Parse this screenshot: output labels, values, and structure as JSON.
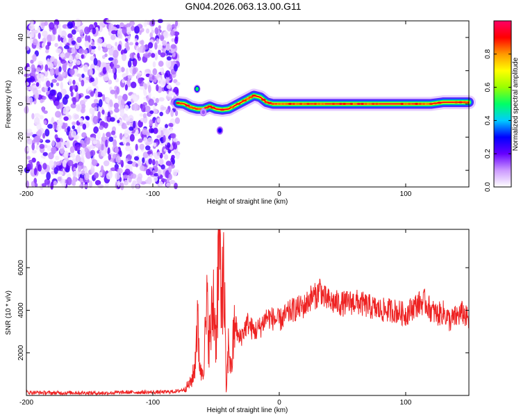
{
  "chart_data": [
    {
      "type": "heatmap",
      "title": "GN04.2026.063.13.00.G11",
      "xlabel": "Height of straight line (km)",
      "ylabel": "Frequency (Hz)",
      "xlim": [
        -200,
        150
      ],
      "ylim": [
        -50,
        50
      ],
      "xticks": [
        -200,
        -100,
        0,
        100
      ],
      "yticks": [
        -40,
        -20,
        0,
        20,
        40
      ],
      "colorbar": {
        "label": "Normalized spectral amplitude",
        "range": [
          0,
          1
        ],
        "ticks": [
          0.0,
          0.2,
          0.4,
          0.6,
          0.8
        ],
        "tick_labels": [
          "0.0",
          "0.2",
          "0.4",
          "0.6",
          "0.8"
        ],
        "colormap": [
          "#ffffff",
          "#cc99ff",
          "#6600ff",
          "#0000ff",
          "#00ccff",
          "#00ff66",
          "#99ff00",
          "#ffff00",
          "#ff9900",
          "#ff0000",
          "#ff0066"
        ]
      },
      "noise_region": {
        "x_range": [
          -200,
          -80
        ],
        "amplitude_range": [
          0.02,
          0.25
        ]
      },
      "signal_trace": [
        [
          -80,
          0.5
        ],
        [
          -75,
          0.0
        ],
        [
          -70,
          -2.0
        ],
        [
          -65,
          -3.0
        ],
        [
          -60,
          -3.0
        ],
        [
          -55,
          -1.5
        ],
        [
          -50,
          -3.0
        ],
        [
          -45,
          -3.5
        ],
        [
          -40,
          -3.0
        ],
        [
          -35,
          -1.0
        ],
        [
          -30,
          1.0
        ],
        [
          -25,
          3.0
        ],
        [
          -20,
          5.0
        ],
        [
          -15,
          4.0
        ],
        [
          -10,
          1.0
        ],
        [
          -5,
          0.0
        ],
        [
          0,
          0.0
        ],
        [
          20,
          0.0
        ],
        [
          40,
          0.0
        ],
        [
          60,
          0.0
        ],
        [
          80,
          0.0
        ],
        [
          100,
          0.0
        ],
        [
          120,
          0.0
        ],
        [
          130,
          1.0
        ],
        [
          140,
          1.0
        ],
        [
          150,
          1.0
        ]
      ],
      "blobs": [
        {
          "x": -65,
          "y": 9,
          "amplitude": 0.5
        },
        {
          "x": -47,
          "y": -16,
          "amplitude": 0.3
        },
        {
          "x": -60,
          "y": -5,
          "amplitude": 0.15
        }
      ]
    },
    {
      "type": "line",
      "xlabel": "Height of straight line (km)",
      "ylabel": "SNR (10 * v/v)",
      "xlim": [
        -200,
        150
      ],
      "ylim": [
        0,
        7800
      ],
      "xticks": [
        -200,
        -100,
        0,
        100
      ],
      "yticks": [
        2000,
        4000,
        6000
      ],
      "color": "#ee2222",
      "series": [
        {
          "x": [
            -200,
            -180,
            -160,
            -140,
            -120,
            -100,
            -90,
            -80,
            -75,
            -70,
            -67,
            -65,
            -62,
            -60,
            -57,
            -55,
            -52,
            -50,
            -48,
            -47,
            -46,
            -45,
            -43,
            -42,
            -40,
            -38,
            -35,
            -32,
            -30,
            -25,
            -20,
            -15,
            -10,
            -5,
            0,
            10,
            20,
            25,
            30,
            32,
            35,
            40,
            50,
            60,
            70,
            80,
            90,
            100,
            105,
            110,
            115,
            120,
            125,
            130,
            135,
            140,
            145,
            150
          ],
          "y": [
            150,
            120,
            130,
            110,
            150,
            150,
            160,
            200,
            300,
            600,
            1200,
            3500,
            1000,
            1500,
            4000,
            2500,
            4500,
            2800,
            6600,
            7600,
            3000,
            6500,
            3800,
            100,
            2500,
            1200,
            3500,
            2600,
            2800,
            3400,
            3000,
            3200,
            3700,
            3600,
            3500,
            4000,
            4200,
            4600,
            4700,
            5100,
            4600,
            4400,
            4300,
            4400,
            4200,
            4000,
            4000,
            3800,
            4100,
            4300,
            4400,
            4000,
            3800,
            3900,
            3500,
            3700,
            3900,
            3500
          ]
        }
      ]
    }
  ]
}
